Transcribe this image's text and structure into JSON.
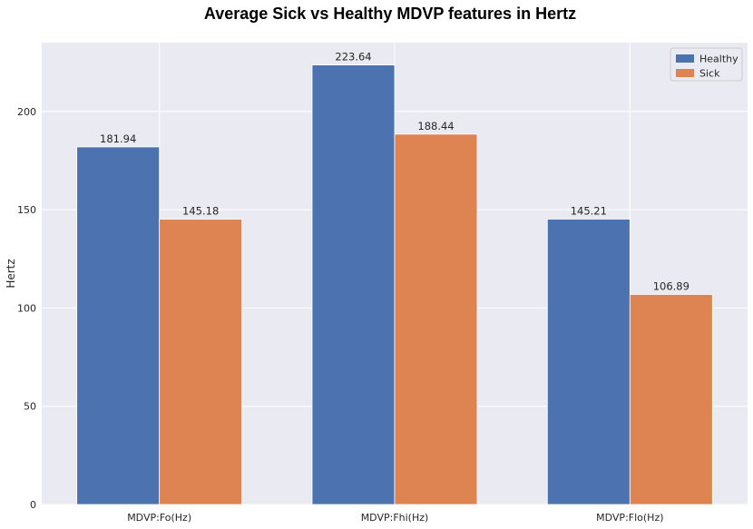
{
  "chart_data": {
    "type": "bar",
    "title": "Average Sick vs Healthy MDVP features in Hertz",
    "xlabel": "",
    "ylabel": "Hertz",
    "categories": [
      "MDVP:Fo(Hz)",
      "MDVP:Fhi(Hz)",
      "MDVP:Flo(Hz)"
    ],
    "series": [
      {
        "name": "Healthy",
        "values": [
          181.94,
          223.64,
          145.21
        ],
        "color": "#4c72b0"
      },
      {
        "name": "Sick",
        "values": [
          145.18,
          188.44,
          106.89
        ],
        "color": "#dd8452"
      }
    ],
    "data_labels": [
      [
        "181.94",
        "223.64",
        "145.21"
      ],
      [
        "145.18",
        "188.44",
        "106.89"
      ]
    ],
    "ylim": [
      0,
      235
    ],
    "yticks": [
      0,
      50,
      100,
      150,
      200
    ],
    "ytick_labels": [
      "0",
      "50",
      "100",
      "150",
      "200"
    ],
    "grid": true,
    "legend_position": "top-right",
    "background": "#eaeaf2"
  }
}
